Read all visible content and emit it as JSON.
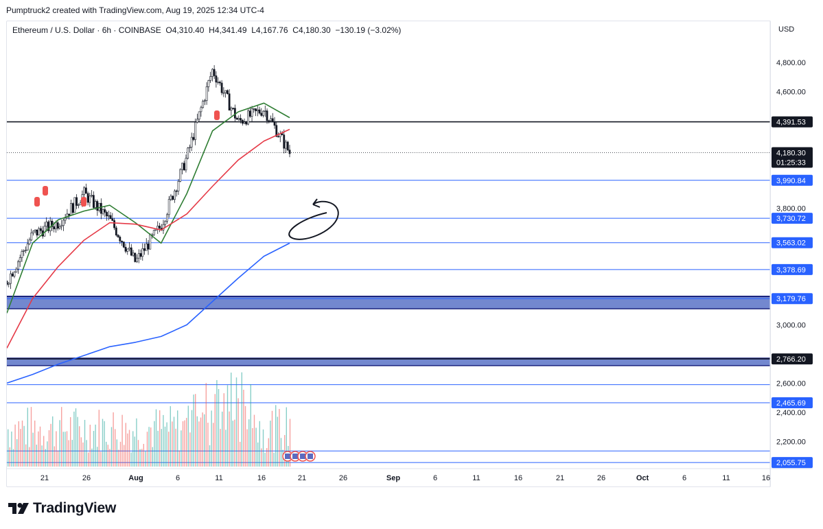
{
  "header": {
    "attribution": "Pumptruck2 created with TradingView.com, Aug 19, 2025 12:34 UTC-4"
  },
  "legend": {
    "symbol": "Ethereum / U.S. Dollar · 6h · COINBASE",
    "open_label": "O",
    "open": "4,310.40",
    "high_label": "H",
    "high": "4,341.49",
    "low_label": "L",
    "low": "4,167.76",
    "close_label": "C",
    "close": "4,180.30",
    "change": "−130.19 (−3.02%)"
  },
  "currency": "USD",
  "footer": {
    "brand": "TradingView"
  },
  "colors": {
    "up": "#26a69a",
    "down": "#ef5350",
    "candle": "#131722",
    "ma_fast": "#2e7d32",
    "ma_mid": "#e53946",
    "ma_slow": "#2962ff",
    "level_line": "#2962ff",
    "zone": "#5b73c7"
  },
  "chart_data": {
    "type": "line",
    "title": "Ethereum / U.S. Dollar · 6h · COINBASE",
    "xlabel": "",
    "ylabel": "",
    "y_axis_ticks": [
      "2,200.00",
      "2,400.00",
      "2,600.00",
      "3,000.00",
      "3,800.00",
      "4,600.00",
      "4,800.00"
    ],
    "x_axis_ticks": [
      "21",
      "26",
      "Aug",
      "6",
      "11",
      "16",
      "21",
      "26",
      "Sep",
      "6",
      "11",
      "16",
      "21",
      "26",
      "Oct",
      "6",
      "11",
      "16"
    ],
    "ylim": [
      2000,
      4860
    ],
    "price_labels": [
      {
        "text": "4,391.53",
        "value": 4391.53,
        "style": "dark"
      },
      {
        "text": "3,990.84",
        "value": 3990.84,
        "style": "blue"
      },
      {
        "text": "3,730.72",
        "value": 3730.72,
        "style": "blue"
      },
      {
        "text": "3,563.02",
        "value": 3563.02,
        "style": "blue"
      },
      {
        "text": "3,378.69",
        "value": 3378.69,
        "style": "blue"
      },
      {
        "text": "3,179.76",
        "value": 3179.76,
        "style": "blue"
      },
      {
        "text": "2,766.20",
        "value": 2766.2,
        "style": "dark"
      },
      {
        "text": "2,465.69",
        "value": 2465.69,
        "style": "blue"
      },
      {
        "text": "2,055.75",
        "value": 2055.75,
        "style": "blue"
      }
    ],
    "current_price": {
      "text": "4,180.30",
      "countdown": "01:25:33",
      "value": 4180.3
    },
    "zones": [
      {
        "low": 3110,
        "high": 3195
      },
      {
        "low": 2720,
        "high": 2770
      }
    ],
    "extra_lines": [
      2590,
      2135
    ],
    "price_path_dates": [
      "Jul 17",
      "Jul 21",
      "Jul 24",
      "Jul 28",
      "Aug 1",
      "Aug 4",
      "Aug 8",
      "Aug 11",
      "Aug 14",
      "Aug 16",
      "Aug 18",
      "Aug 19"
    ],
    "price_path": [
      3300,
      3620,
      3700,
      3900,
      3720,
      3430,
      3680,
      4150,
      4750,
      4390,
      4480,
      4180
    ],
    "series": [
      {
        "name": "",
        "values": [
          3080,
          3560,
          3720,
          3780,
          3820,
          3700,
          3560,
          3900,
          4330,
          4460,
          4520,
          4420
        ]
      },
      {
        "name": "",
        "values": [
          2840,
          3180,
          3400,
          3580,
          3700,
          3690,
          3650,
          3760,
          3950,
          4130,
          4260,
          4340
        ]
      },
      {
        "name": "",
        "values": [
          2600,
          2660,
          2730,
          2790,
          2850,
          2880,
          2920,
          3000,
          3160,
          3320,
          3470,
          3560
        ]
      }
    ]
  }
}
